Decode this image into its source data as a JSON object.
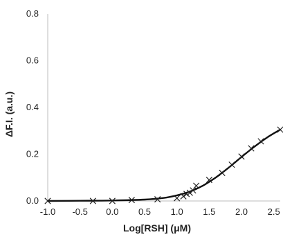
{
  "chart_data": {
    "type": "scatter",
    "title": "",
    "xlabel": "Log[RSH] (μM)",
    "ylabel": "ΔF.I. (a.u.)",
    "xlim": [
      -1.0,
      2.6
    ],
    "ylim": [
      0.0,
      0.8
    ],
    "xticks": [
      "-1.0",
      "-0.5",
      "0.0",
      "0.5",
      "1.0",
      "1.5",
      "2.0",
      "2.5"
    ],
    "yticks": [
      "0.0",
      "0.2",
      "0.4",
      "0.6",
      "0.8"
    ],
    "grid": false,
    "legend": "none",
    "series": [
      {
        "marker": "x",
        "color": "#222222",
        "x": [
          -1.0,
          -0.3,
          0.0,
          0.3,
          0.7,
          1.0,
          1.1,
          1.15,
          1.2,
          1.25,
          1.3,
          1.5,
          1.7,
          1.85,
          2.0,
          2.15,
          2.3,
          2.6
        ],
        "y": [
          0.0,
          0.0,
          0.0,
          0.004,
          0.007,
          0.012,
          0.02,
          0.03,
          0.035,
          0.045,
          0.065,
          0.09,
          0.12,
          0.155,
          0.19,
          0.225,
          0.255,
          0.305
        ]
      },
      {
        "type": "line",
        "color": "#111111",
        "x": [
          -1.0,
          -0.5,
          0.0,
          0.5,
          0.8,
          1.0,
          1.2,
          1.4,
          1.6,
          1.8,
          2.0,
          2.2,
          2.4,
          2.6
        ],
        "y": [
          0.0,
          0.001,
          0.002,
          0.006,
          0.013,
          0.024,
          0.04,
          0.065,
          0.1,
          0.142,
          0.188,
          0.232,
          0.272,
          0.305
        ]
      }
    ]
  }
}
